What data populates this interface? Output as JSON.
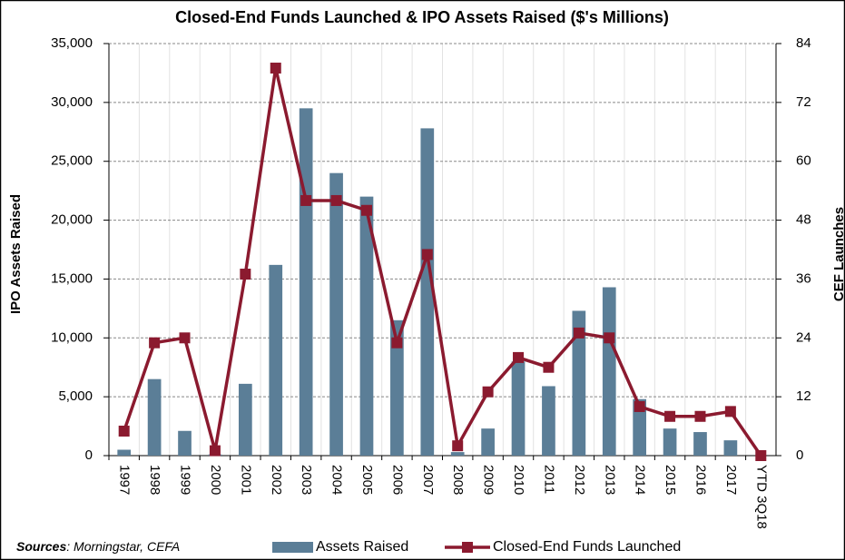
{
  "chart_data": {
    "type": "bar_line",
    "title": "Closed-End Funds Launched & IPO Assets Raised ($'s Millions)",
    "y_label": "IPO Assets Raised",
    "y2_label": "CEF Launches",
    "source_label": "Sources",
    "source_text": ": Morningstar, CEFA",
    "categories": [
      "1997",
      "1998",
      "1999",
      "2000",
      "2001",
      "2002",
      "2003",
      "2004",
      "2005",
      "2006",
      "2007",
      "2008",
      "2009",
      "2010",
      "2011",
      "2012",
      "2013",
      "2014",
      "2015",
      "2016",
      "2017",
      "YTD 3Q18"
    ],
    "series": [
      {
        "name": "Assets Raised",
        "type": "bar",
        "color": "#5b7e97",
        "values": [
          500,
          6500,
          2100,
          100,
          6100,
          16200,
          29500,
          24000,
          22000,
          11500,
          27800,
          300,
          2300,
          8000,
          5900,
          12300,
          14300,
          4800,
          2300,
          2000,
          1300,
          0
        ]
      },
      {
        "name": "Closed-End Funds Launched",
        "type": "line",
        "axis": "y2",
        "color": "#8b1a2f",
        "values": [
          5,
          23,
          24,
          1,
          37,
          79,
          52,
          52,
          50,
          23,
          41,
          2,
          13,
          20,
          18,
          25,
          24,
          10,
          8,
          8,
          9,
          0
        ]
      }
    ],
    "ylim": [
      0,
      35000
    ],
    "yticks": [
      0,
      {
        "value": 5000,
        "label": "5,000"
      },
      {
        "value": 10000,
        "label": "10,000"
      },
      {
        "value": 15000,
        "label": "15,000"
      },
      {
        "value": 20000,
        "label": "20,000"
      },
      {
        "value": 25000,
        "label": "25,000"
      },
      {
        "value": 30000,
        "label": "30,000"
      },
      {
        "value": 35000,
        "label": "35,000"
      }
    ],
    "y2lim": [
      0,
      84
    ],
    "y2ticks": [
      0,
      12,
      24,
      36,
      48,
      60,
      72,
      84
    ],
    "grid": true
  }
}
